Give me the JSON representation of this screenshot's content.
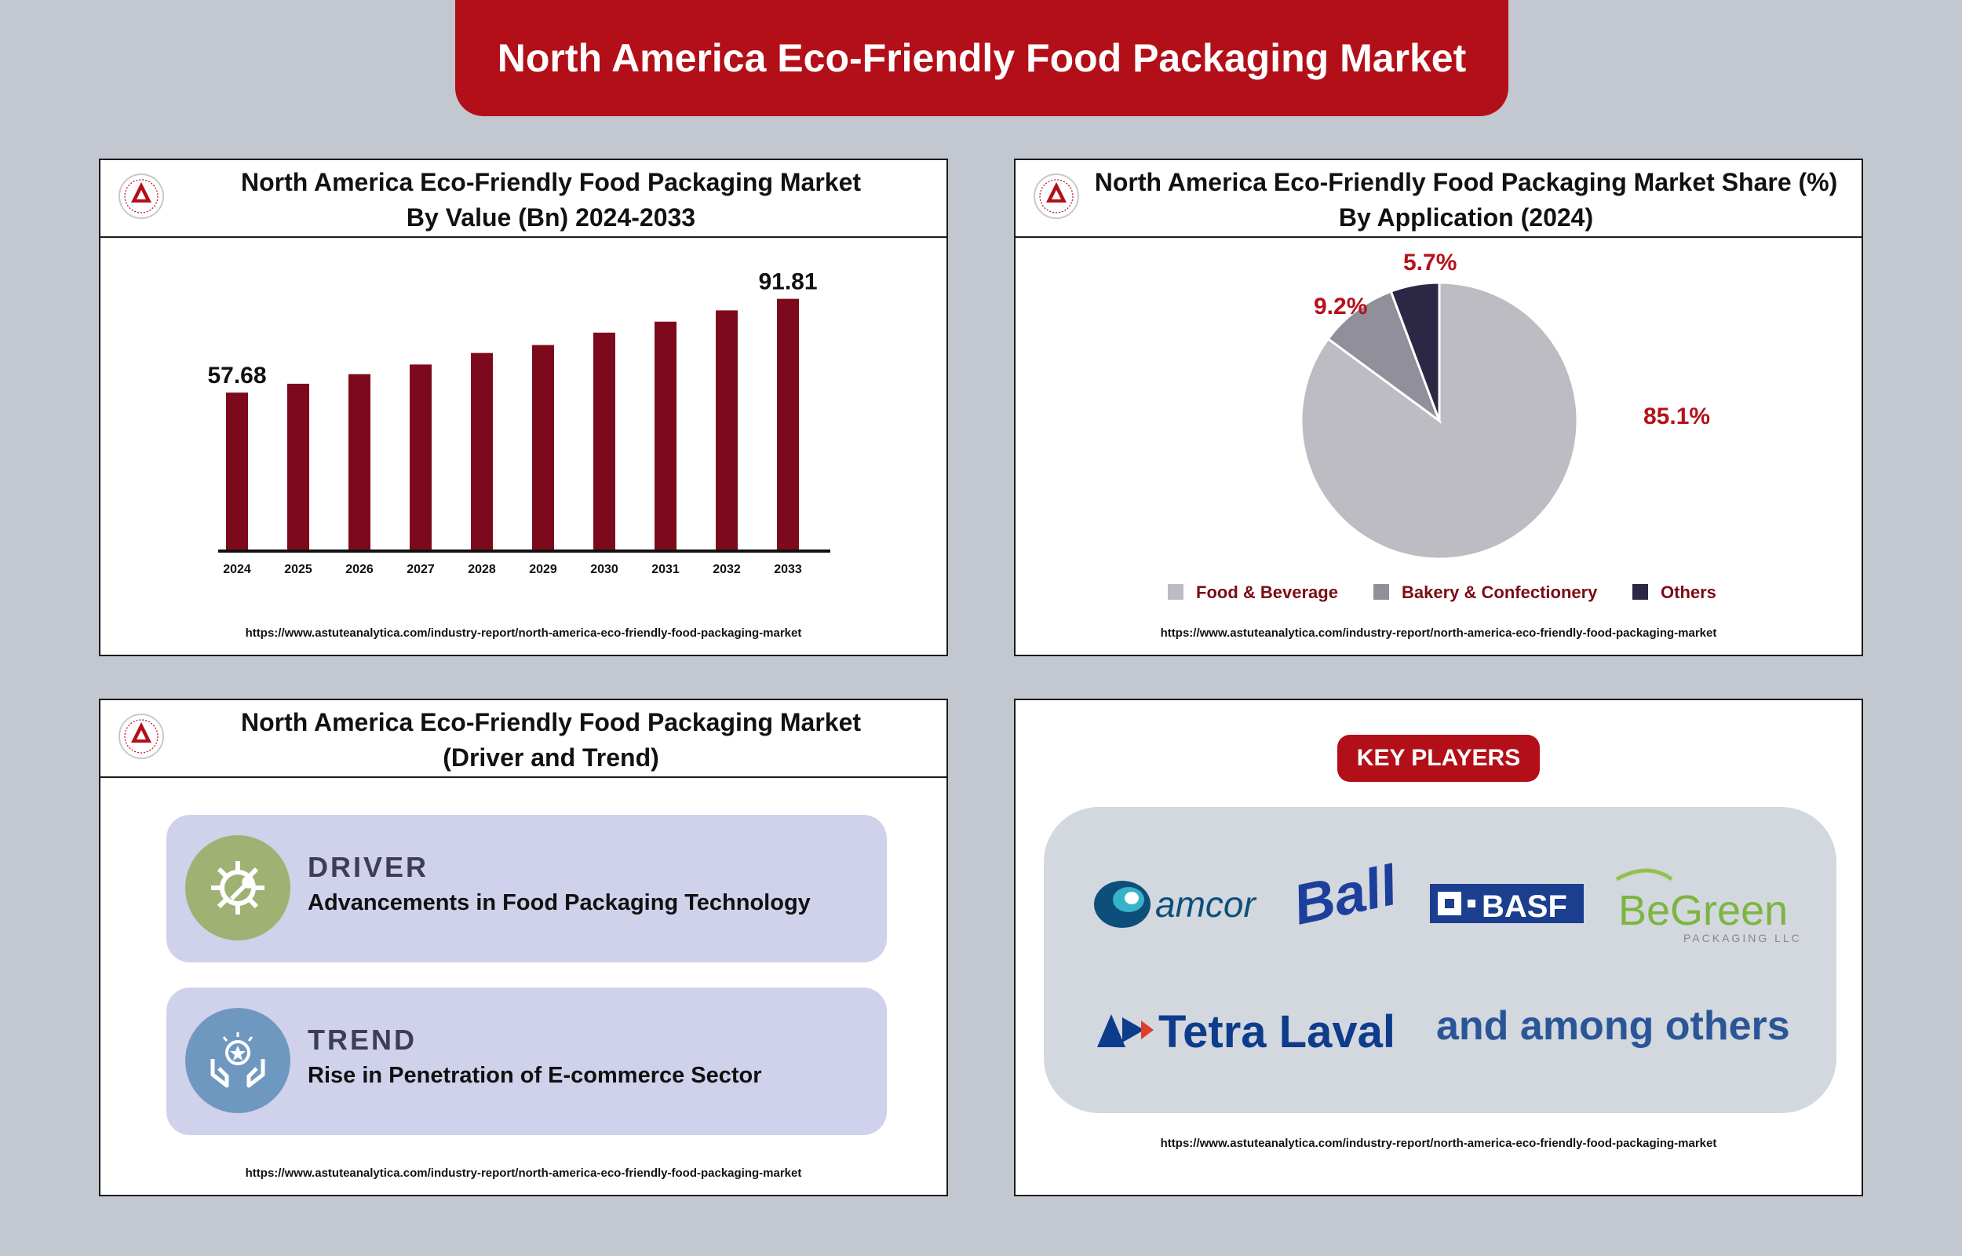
{
  "header": {
    "title": "North America Eco-Friendly Food Packaging Market"
  },
  "logo": {
    "text": "ASTUTE ANALYTICA"
  },
  "panel_value": {
    "title_line1": "North America Eco-Friendly Food Packaging Market",
    "title_line2": "By Value (Bn) 2024-2033",
    "url": "https://www.astuteanalytica.com/industry-report/north-america-eco-friendly-food-packaging-market"
  },
  "panel_share": {
    "title_line1": "North America Eco-Friendly Food Packaging Market Share (%)",
    "title_line2": "By Application (2024)",
    "url": "https://www.astuteanalytica.com/industry-report/north-america-eco-friendly-food-packaging-market"
  },
  "panel_driver": {
    "title_line1": "North America Eco-Friendly Food Packaging Market",
    "title_line2": "(Driver and Trend)",
    "driver_heading": "DRIVER",
    "driver_text": "Advancements in Food Packaging Technology",
    "trend_heading": "TREND",
    "trend_text": "Rise in Penetration of E-commerce Sector",
    "url": "https://www.astuteanalytica.com/industry-report/north-america-eco-friendly-food-packaging-market"
  },
  "panel_players": {
    "button": "KEY PLAYERS",
    "players": [
      "amcor",
      "Ball",
      "BASF",
      "BeGreen",
      "PACKAGING LLC",
      "Tetra Laval"
    ],
    "others": "and among others",
    "url": "https://www.astuteanalytica.com/industry-report/north-america-eco-friendly-food-packaging-market"
  },
  "colors": {
    "banner": "#b30f18",
    "bar": "#7d0a1c",
    "pie": [
      "#bcbcc2",
      "#908f9a",
      "#2c2744"
    ],
    "label": "#b5121b",
    "legend_text": "#7a0c14"
  },
  "chart_data": [
    {
      "type": "bar",
      "categories": [
        "2024",
        "2025",
        "2026",
        "2027",
        "2028",
        "2029",
        "2030",
        "2031",
        "2032",
        "2033"
      ],
      "values": [
        57.68,
        60.9,
        64.4,
        67.9,
        72.1,
        75.0,
        79.5,
        83.5,
        87.6,
        91.81
      ],
      "data_labels": [
        "57.68",
        "",
        "",
        "",
        "",
        "",
        "",
        "",
        "",
        "91.81"
      ],
      "ylim": [
        0,
        100
      ],
      "grid": false
    },
    {
      "type": "pie",
      "categories": [
        "Food & Beverage",
        "Bakery & Confectionery",
        "Others"
      ],
      "values": [
        85.1,
        9.2,
        5.7
      ],
      "data_labels": [
        "85.1%",
        "9.2%",
        "5.7%"
      ],
      "legend": "bottom"
    }
  ]
}
